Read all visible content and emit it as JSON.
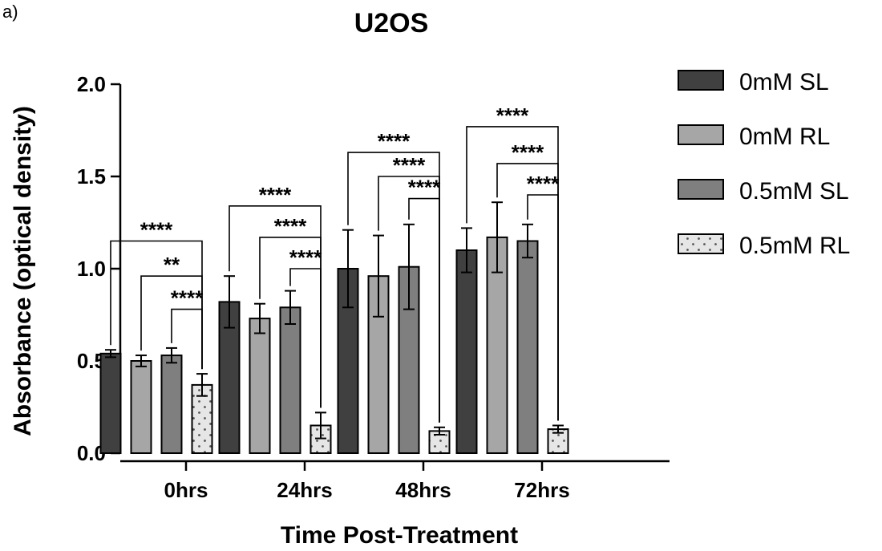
{
  "panel_label": "a)",
  "chart_data": {
    "type": "bar",
    "title": "U2OS",
    "xlabel": "Time Post-Treatment",
    "ylabel": "Absorbance (optical density)",
    "ylim": [
      0,
      2.0
    ],
    "yticks": [
      0.0,
      0.5,
      1.0,
      1.5,
      2.0
    ],
    "ytick_labels": [
      "0.0",
      "0.5",
      "1.0",
      "1.5",
      "2.0"
    ],
    "categories": [
      "0hrs",
      "24hrs",
      "48hrs",
      "72hrs"
    ],
    "legend_position": "top-right",
    "series": [
      {
        "name": "0mM SL",
        "color": "#404040",
        "pattern": "solid",
        "values": [
          0.54,
          0.82,
          1.0,
          1.1
        ],
        "errors": [
          0.02,
          0.14,
          0.21,
          0.12
        ]
      },
      {
        "name": "0mM RL",
        "color": "#a6a6a6",
        "pattern": "solid",
        "values": [
          0.5,
          0.73,
          0.96,
          1.17
        ],
        "errors": [
          0.03,
          0.08,
          0.22,
          0.19
        ]
      },
      {
        "name": "0.5mM SL",
        "color": "#7f7f7f",
        "pattern": "solid",
        "values": [
          0.53,
          0.79,
          1.01,
          1.15
        ],
        "errors": [
          0.04,
          0.09,
          0.23,
          0.09
        ]
      },
      {
        "name": "0.5mM RL",
        "color": "#e6e6e6",
        "pattern": "dots",
        "values": [
          0.37,
          0.15,
          0.12,
          0.13
        ],
        "errors": [
          0.06,
          0.07,
          0.02,
          0.02
        ]
      }
    ],
    "significance": [
      {
        "group": 0,
        "from_series": 0,
        "to_series": 3,
        "y": 1.15,
        "label": "****"
      },
      {
        "group": 0,
        "from_series": 1,
        "to_series": 3,
        "y": 0.96,
        "label": "**"
      },
      {
        "group": 0,
        "from_series": 2,
        "to_series": 3,
        "y": 0.78,
        "label": "****"
      },
      {
        "group": 1,
        "from_series": 0,
        "to_series": 3,
        "y": 1.34,
        "label": "****"
      },
      {
        "group": 1,
        "from_series": 1,
        "to_series": 3,
        "y": 1.17,
        "label": "****"
      },
      {
        "group": 1,
        "from_series": 2,
        "to_series": 3,
        "y": 1.0,
        "label": "****"
      },
      {
        "group": 2,
        "from_series": 0,
        "to_series": 3,
        "y": 1.63,
        "label": "****"
      },
      {
        "group": 2,
        "from_series": 1,
        "to_series": 3,
        "y": 1.5,
        "label": "****"
      },
      {
        "group": 2,
        "from_series": 2,
        "to_series": 3,
        "y": 1.38,
        "label": "****"
      },
      {
        "group": 3,
        "from_series": 0,
        "to_series": 3,
        "y": 1.77,
        "label": "****"
      },
      {
        "group": 3,
        "from_series": 1,
        "to_series": 3,
        "y": 1.57,
        "label": "****"
      },
      {
        "group": 3,
        "from_series": 2,
        "to_series": 3,
        "y": 1.4,
        "label": "****"
      }
    ]
  }
}
